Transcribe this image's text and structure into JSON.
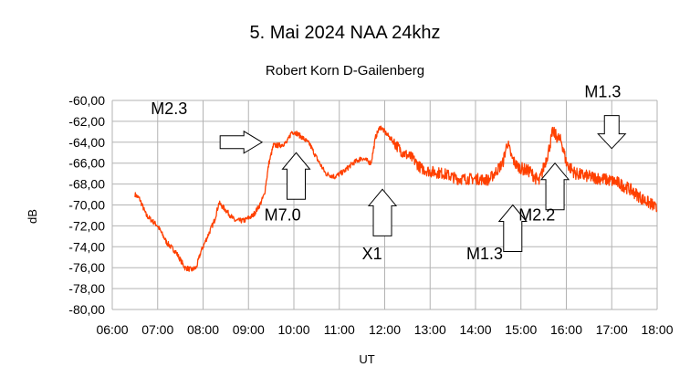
{
  "chart_data": {
    "type": "line",
    "title": "5. Mai 2024   NAA 24khz",
    "subtitle": "Robert Korn  D-Gailenberg",
    "xlabel": "UT",
    "ylabel": "dB",
    "xlim": [
      6,
      18
    ],
    "ylim": [
      -80,
      -60
    ],
    "x_tick_values": [
      6,
      7,
      8,
      9,
      10,
      11,
      12,
      13,
      14,
      15,
      16,
      17,
      18
    ],
    "x_tick_labels": [
      "06:00",
      "07:00",
      "08:00",
      "09:00",
      "10:00",
      "11:00",
      "12:00",
      "13:00",
      "14:00",
      "15:00",
      "16:00",
      "17:00",
      "18:00"
    ],
    "y_tick_values": [
      -60,
      -62,
      -64,
      -66,
      -68,
      -70,
      -72,
      -74,
      -76,
      -78,
      -80
    ],
    "y_tick_labels": [
      "-60,00",
      "-62,00",
      "-64,00",
      "-66,00",
      "-68,00",
      "-70,00",
      "-72,00",
      "-74,00",
      "-76,00",
      "-78,00",
      "-80,00"
    ],
    "grid": true,
    "series": [
      {
        "name": "NAA 24khz",
        "color": "#ff4000",
        "x": [
          6.5,
          6.6,
          6.75,
          7.0,
          7.2,
          7.4,
          7.6,
          7.75,
          7.85,
          7.95,
          8.1,
          8.25,
          8.35,
          8.5,
          8.7,
          8.9,
          9.1,
          9.25,
          9.35,
          9.45,
          9.55,
          9.7,
          9.85,
          9.95,
          10.05,
          10.2,
          10.35,
          10.5,
          10.7,
          10.9,
          11.1,
          11.3,
          11.5,
          11.7,
          11.8,
          11.9,
          12.0,
          12.2,
          12.4,
          12.6,
          12.8,
          13.0,
          13.3,
          13.6,
          14.0,
          14.3,
          14.6,
          14.7,
          14.8,
          14.9,
          15.0,
          15.2,
          15.4,
          15.6,
          15.7,
          15.8,
          15.9,
          16.0,
          16.2,
          16.5,
          16.8,
          17.1,
          17.4,
          17.7,
          17.9,
          18.0
        ],
        "values": [
          -69.0,
          -69.4,
          -71.0,
          -72.0,
          -73.6,
          -74.5,
          -76.0,
          -76.2,
          -76.0,
          -74.5,
          -73.0,
          -71.5,
          -69.8,
          -70.5,
          -71.5,
          -71.5,
          -71.0,
          -70.0,
          -69.0,
          -66.0,
          -64.3,
          -64.3,
          -64.0,
          -63.0,
          -63.1,
          -63.6,
          -64.2,
          -65.5,
          -67.0,
          -67.3,
          -66.8,
          -66.0,
          -65.5,
          -66.0,
          -63.5,
          -62.5,
          -63.0,
          -64.0,
          -65.0,
          -65.5,
          -66.5,
          -66.8,
          -67.0,
          -67.5,
          -67.5,
          -67.6,
          -66.0,
          -64.0,
          -65.5,
          -66.2,
          -66.5,
          -66.8,
          -67.8,
          -65.0,
          -63.0,
          -63.5,
          -64.0,
          -66.0,
          -67.0,
          -67.3,
          -67.5,
          -67.8,
          -68.5,
          -69.5,
          -70.0,
          -70.5
        ]
      }
    ],
    "annotations": [
      {
        "text": "M2.3",
        "x": 6.85,
        "y": -61.3
      },
      {
        "text": "M7.0",
        "x": 9.35,
        "y": -71.5
      },
      {
        "text": "X1",
        "x": 11.5,
        "y": -75.2
      },
      {
        "text": "M1.3",
        "x": 13.8,
        "y": -75.2
      },
      {
        "text": "M2.2",
        "x": 14.95,
        "y": -71.5
      },
      {
        "text": "M1.3",
        "x": 16.4,
        "y": -59.7
      }
    ],
    "arrows": [
      {
        "name": "arrow-right-m2-3",
        "dir": "right",
        "x": 9.3,
        "y": -64.0
      },
      {
        "name": "arrow-up-m7-0",
        "dir": "up",
        "x": 10.05,
        "y": -65.0
      },
      {
        "name": "arrow-up-x1",
        "dir": "up",
        "x": 11.95,
        "y": -68.5
      },
      {
        "name": "arrow-up-m1-3",
        "dir": "up",
        "x": 14.82,
        "y": -70.0
      },
      {
        "name": "arrow-up-m2-2",
        "dir": "up",
        "x": 15.75,
        "y": -66.0
      },
      {
        "name": "arrow-down-m1-3",
        "dir": "down",
        "x": 17.0,
        "y": -64.6
      }
    ]
  }
}
